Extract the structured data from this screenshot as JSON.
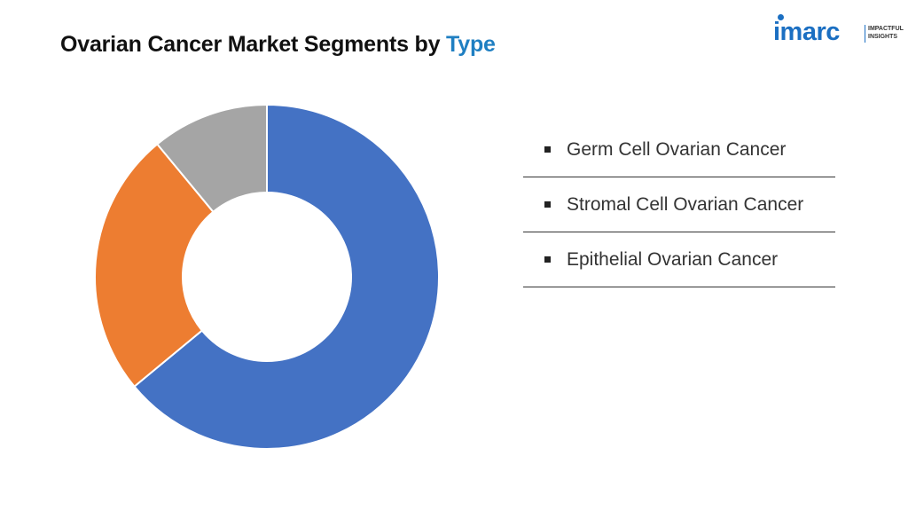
{
  "header": {
    "title_prefix": "Ovarian Cancer Market Segments by ",
    "title_highlight": "Type"
  },
  "logo": {
    "word": "imarc",
    "tag_line1": "IMPACTFUL",
    "tag_line2": "INSIGHTS",
    "color": "#1b6fc2"
  },
  "chart_data": {
    "type": "pie",
    "style": "donut",
    "title": "Ovarian Cancer Market Segments by Type",
    "categories": [
      "Epithelial Ovarian Cancer",
      "Stromal Cell Ovarian Cancer",
      "Germ Cell Ovarian Cancer"
    ],
    "values": [
      64,
      25,
      11
    ],
    "unit": "%",
    "colors": [
      "#4472c4",
      "#ed7d31",
      "#a5a5a5"
    ],
    "start_angle_deg": 0,
    "direction": "clockwise",
    "legend_position": "right"
  },
  "legend": {
    "items": [
      {
        "label": "Germ Cell Ovarian Cancer"
      },
      {
        "label": "Stromal Cell Ovarian Cancer"
      },
      {
        "label": "Epithelial Ovarian Cancer"
      }
    ]
  }
}
